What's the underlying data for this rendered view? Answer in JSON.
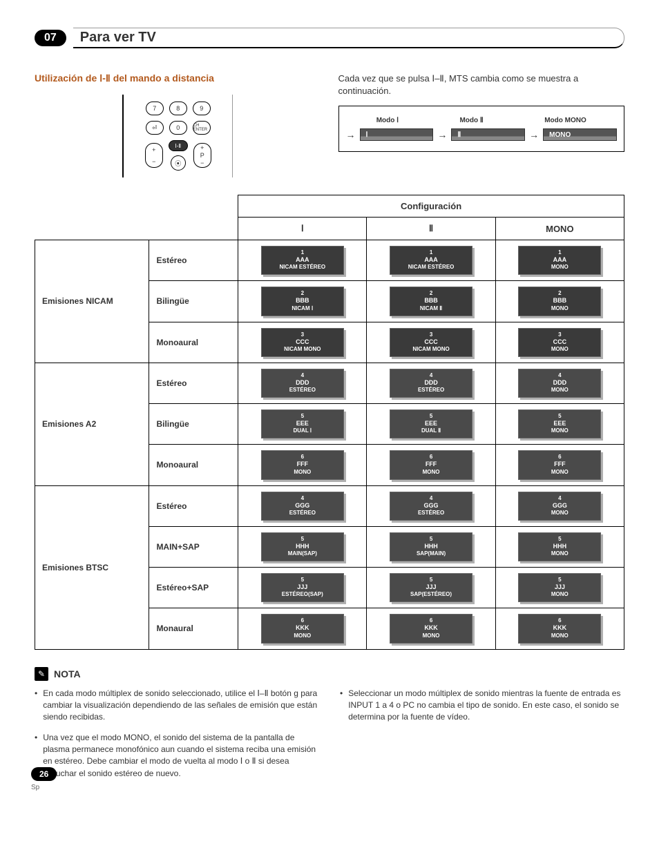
{
  "chapter": {
    "number": "07",
    "title": "Para ver TV"
  },
  "section": {
    "subtitle": "Utilización de Ⅰ-Ⅱ del mando a distancia",
    "description": "Cada vez que se pulsa Ⅰ–Ⅱ, MTS cambia como se muestra a continuación."
  },
  "remote": {
    "row1": [
      "7",
      "8",
      "9"
    ],
    "row2": [
      "⏎",
      "0",
      "CH ENTER"
    ],
    "pill_plus": "+",
    "pill_minus": "−",
    "pill_p": "P",
    "center_pill": "Ⅰ-Ⅱ"
  },
  "modes": {
    "labels": [
      "Modo Ⅰ",
      "Modo Ⅱ",
      "Modo MONO"
    ],
    "bars": [
      "Ⅰ",
      "Ⅱ",
      "MONO"
    ]
  },
  "table_header": {
    "config": "Configuración",
    "col1": "Ⅰ",
    "col2": "Ⅱ",
    "col3": "MONO"
  },
  "chip_colors": {
    "dark": "#4a4a4a",
    "darker": "#3a3a3a"
  },
  "groups": [
    {
      "name": "Emisiones NICAM",
      "rows": [
        {
          "label": "Estéreo",
          "cells": [
            {
              "n": "1",
              "c": "AAA",
              "m": "NICAM ESTÉREO"
            },
            {
              "n": "1",
              "c": "AAA",
              "m": "NICAM ESTÉREO"
            },
            {
              "n": "1",
              "c": "AAA",
              "m": "MONO"
            }
          ]
        },
        {
          "label": "Bilingüe",
          "cells": [
            {
              "n": "2",
              "c": "BBB",
              "m": "NICAM Ⅰ"
            },
            {
              "n": "2",
              "c": "BBB",
              "m": "NICAM Ⅱ"
            },
            {
              "n": "2",
              "c": "BBB",
              "m": "MONO"
            }
          ]
        },
        {
          "label": "Monoaural",
          "cells": [
            {
              "n": "3",
              "c": "CCC",
              "m": "NICAM MONO"
            },
            {
              "n": "3",
              "c": "CCC",
              "m": "NICAM MONO"
            },
            {
              "n": "3",
              "c": "CCC",
              "m": "MONO"
            }
          ]
        }
      ]
    },
    {
      "name": "Emisiones A2",
      "rows": [
        {
          "label": "Estéreo",
          "cells": [
            {
              "n": "4",
              "c": "DDD",
              "m": "ESTÉREO"
            },
            {
              "n": "4",
              "c": "DDD",
              "m": "ESTÉREO"
            },
            {
              "n": "4",
              "c": "DDD",
              "m": "MONO"
            }
          ]
        },
        {
          "label": "Bilingüe",
          "cells": [
            {
              "n": "5",
              "c": "EEE",
              "m": "DUAL Ⅰ"
            },
            {
              "n": "5",
              "c": "EEE",
              "m": "DUAL Ⅱ"
            },
            {
              "n": "5",
              "c": "EEE",
              "m": "MONO"
            }
          ]
        },
        {
          "label": "Monoaural",
          "cells": [
            {
              "n": "6",
              "c": "FFF",
              "m": "MONO"
            },
            {
              "n": "6",
              "c": "FFF",
              "m": "MONO"
            },
            {
              "n": "6",
              "c": "FFF",
              "m": "MONO"
            }
          ]
        }
      ]
    },
    {
      "name": "Emisiones BTSC",
      "rows": [
        {
          "label": "Estéreo",
          "cells": [
            {
              "n": "4",
              "c": "GGG",
              "m": "ESTÉREO"
            },
            {
              "n": "4",
              "c": "GGG",
              "m": "ESTÉREO"
            },
            {
              "n": "4",
              "c": "GGG",
              "m": "MONO"
            }
          ]
        },
        {
          "label": "MAIN+SAP",
          "cells": [
            {
              "n": "5",
              "c": "HHH",
              "m": "MAIN(SAP)"
            },
            {
              "n": "5",
              "c": "HHH",
              "m": "SAP(MAIN)"
            },
            {
              "n": "5",
              "c": "HHH",
              "m": "MONO"
            }
          ]
        },
        {
          "label": "Estéreo+SAP",
          "cells": [
            {
              "n": "5",
              "c": "JJJ",
              "m": "ESTÉREO(SAP)"
            },
            {
              "n": "5",
              "c": "JJJ",
              "m": "SAP(ESTÉREO)"
            },
            {
              "n": "5",
              "c": "JJJ",
              "m": "MONO"
            }
          ]
        },
        {
          "label": "Monaural",
          "cells": [
            {
              "n": "6",
              "c": "KKK",
              "m": "MONO"
            },
            {
              "n": "6",
              "c": "KKK",
              "m": "MONO"
            },
            {
              "n": "6",
              "c": "KKK",
              "m": "MONO"
            }
          ]
        }
      ]
    }
  ],
  "note": {
    "title": "NOTA",
    "left": [
      "En cada modo múltiplex de sonido seleccionado, utilice el Ⅰ–Ⅱ botón g para cambiar la visualización dependiendo de las señales de emisión que están siendo recibidas.",
      "Una vez que el modo MONO, el sonido del sistema de la pantalla de plasma permanece monofónico aun cuando el sistema reciba una emisión en estéreo. Debe cambiar el modo de vuelta al modo Ⅰ o Ⅱ si desea escuchar el sonido estéreo de nuevo."
    ],
    "right": [
      "Seleccionar un modo múltiplex de sonido mientras la fuente de entrada es INPUT 1 a 4 o PC no cambia el tipo de sonido. En este caso, el sonido se determina por la fuente de vídeo."
    ]
  },
  "footer": {
    "page": "26",
    "lang": "Sp"
  }
}
